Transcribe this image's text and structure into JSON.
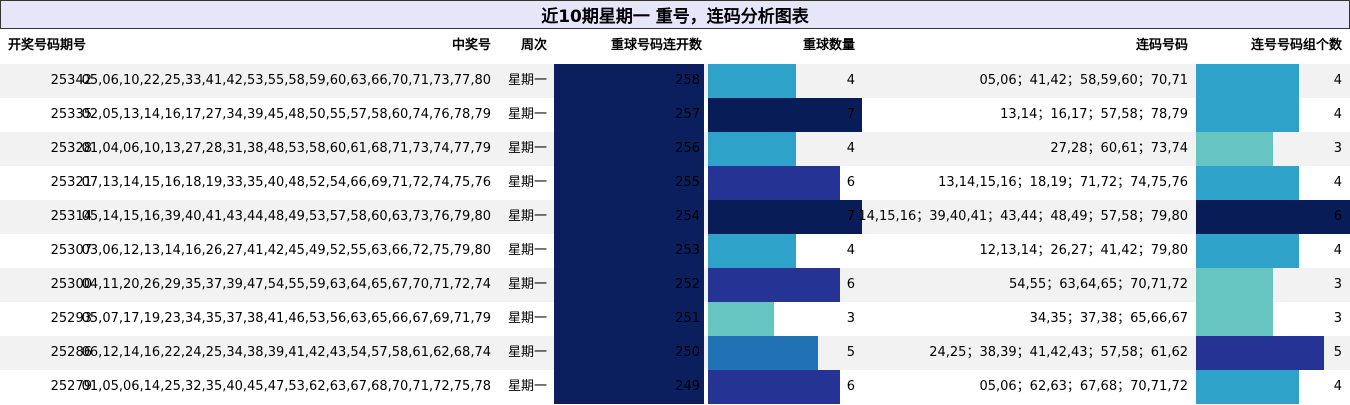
{
  "title": "近10期星期一 重号，连码分析图表",
  "headers": {
    "period": "开奖号码期号",
    "numbers": "中奖号",
    "weekday": "周次",
    "repeat_streak": "重球号码连开数",
    "repeat_count": "重球数量",
    "consecutive": "连码号码",
    "consecutive_groups": "连号号码组个数"
  },
  "colors": {
    "streak_bar": "#0b1f5e",
    "count_scale": [
      "#66c5c0",
      "#2ea2c8",
      "#2171b5",
      "#253494",
      "#081d58"
    ]
  },
  "chart_data": {
    "type": "table",
    "columns": [
      "开奖号码期号",
      "中奖号",
      "周次",
      "重球号码连开数",
      "重球数量",
      "连码号码",
      "连号号码组个数"
    ],
    "rows": [
      {
        "period": "25342",
        "numbers": "05,06,10,22,25,33,41,42,53,55,58,59,60,63,66,70,71,73,77,80",
        "weekday": "星期一",
        "streak": 258,
        "count": 4,
        "consecutive": "05,06；41,42；58,59,60；70,71",
        "groups": 4
      },
      {
        "period": "25335",
        "numbers": "02,05,13,14,16,17,27,34,39,45,48,50,55,57,58,60,74,76,78,79",
        "weekday": "星期一",
        "streak": 257,
        "count": 7,
        "consecutive": "13,14；16,17；57,58；78,79",
        "groups": 4
      },
      {
        "period": "25328",
        "numbers": "01,04,06,10,13,27,28,31,38,48,53,58,60,61,68,71,73,74,77,79",
        "weekday": "星期一",
        "streak": 256,
        "count": 4,
        "consecutive": "27,28；60,61；73,74",
        "groups": 3
      },
      {
        "period": "25321",
        "numbers": "07,13,14,15,16,18,19,33,35,40,48,52,54,66,69,71,72,74,75,76",
        "weekday": "星期一",
        "streak": 255,
        "count": 6,
        "consecutive": "13,14,15,16；18,19；71,72；74,75,76",
        "groups": 4
      },
      {
        "period": "25314",
        "numbers": "05,14,15,16,39,40,41,43,44,48,49,53,57,58,60,63,73,76,79,80",
        "weekday": "星期一",
        "streak": 254,
        "count": 7,
        "consecutive": "14,15,16；39,40,41；43,44；48,49；57,58；79,80",
        "groups": 6
      },
      {
        "period": "25307",
        "numbers": "03,06,12,13,14,16,26,27,41,42,45,49,52,55,63,66,72,75,79,80",
        "weekday": "星期一",
        "streak": 253,
        "count": 4,
        "consecutive": "12,13,14；26,27；41,42；79,80",
        "groups": 4
      },
      {
        "period": "25300",
        "numbers": "04,11,20,26,29,35,37,39,47,54,55,59,63,64,65,67,70,71,72,74",
        "weekday": "星期一",
        "streak": 252,
        "count": 6,
        "consecutive": "54,55；63,64,65；70,71,72",
        "groups": 3
      },
      {
        "period": "25293",
        "numbers": "05,07,17,19,23,34,35,37,38,41,46,53,56,63,65,66,67,69,71,79",
        "weekday": "星期一",
        "streak": 251,
        "count": 3,
        "consecutive": "34,35；37,38；65,66,67",
        "groups": 3
      },
      {
        "period": "25286",
        "numbers": "06,12,14,16,22,24,25,34,38,39,41,42,43,54,57,58,61,62,68,74",
        "weekday": "星期一",
        "streak": 250,
        "count": 5,
        "consecutive": "24,25；38,39；41,42,43；57,58；61,62",
        "groups": 5
      },
      {
        "period": "25279",
        "numbers": "01,05,06,14,25,32,35,40,45,47,53,62,63,67,68,70,71,72,75,78",
        "weekday": "星期一",
        "streak": 249,
        "count": 6,
        "consecutive": "05,06；62,63；67,68；70,71,72",
        "groups": 4
      }
    ]
  }
}
